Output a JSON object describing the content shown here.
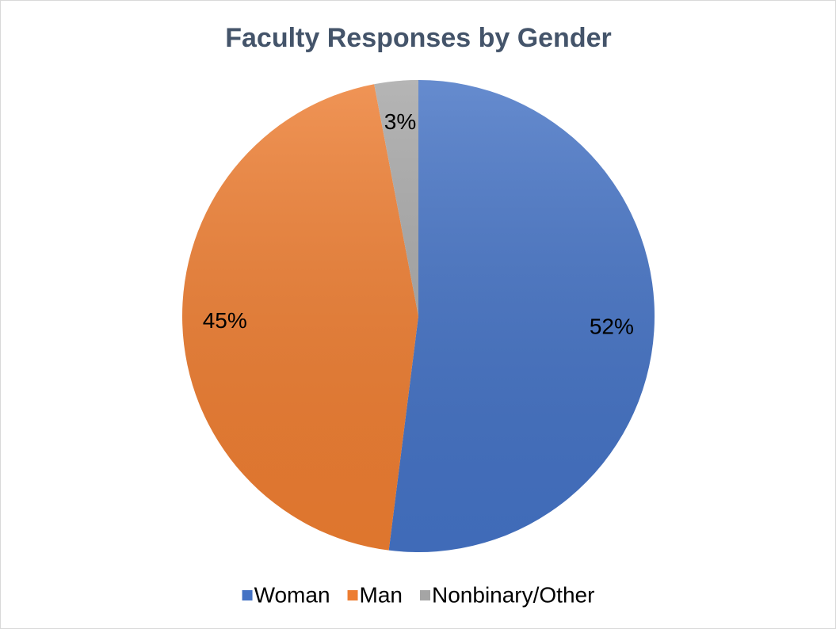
{
  "chart_data": {
    "type": "pie",
    "title": "Faculty Responses by Gender",
    "categories": [
      "Woman",
      "Man",
      "Nonbinary/Other"
    ],
    "values": [
      52,
      45,
      3
    ],
    "value_labels": [
      "52%",
      "45%",
      "3%"
    ],
    "colors": [
      "#4472c4",
      "#ed7d31",
      "#a5a5a5"
    ],
    "legend": "bottom"
  }
}
